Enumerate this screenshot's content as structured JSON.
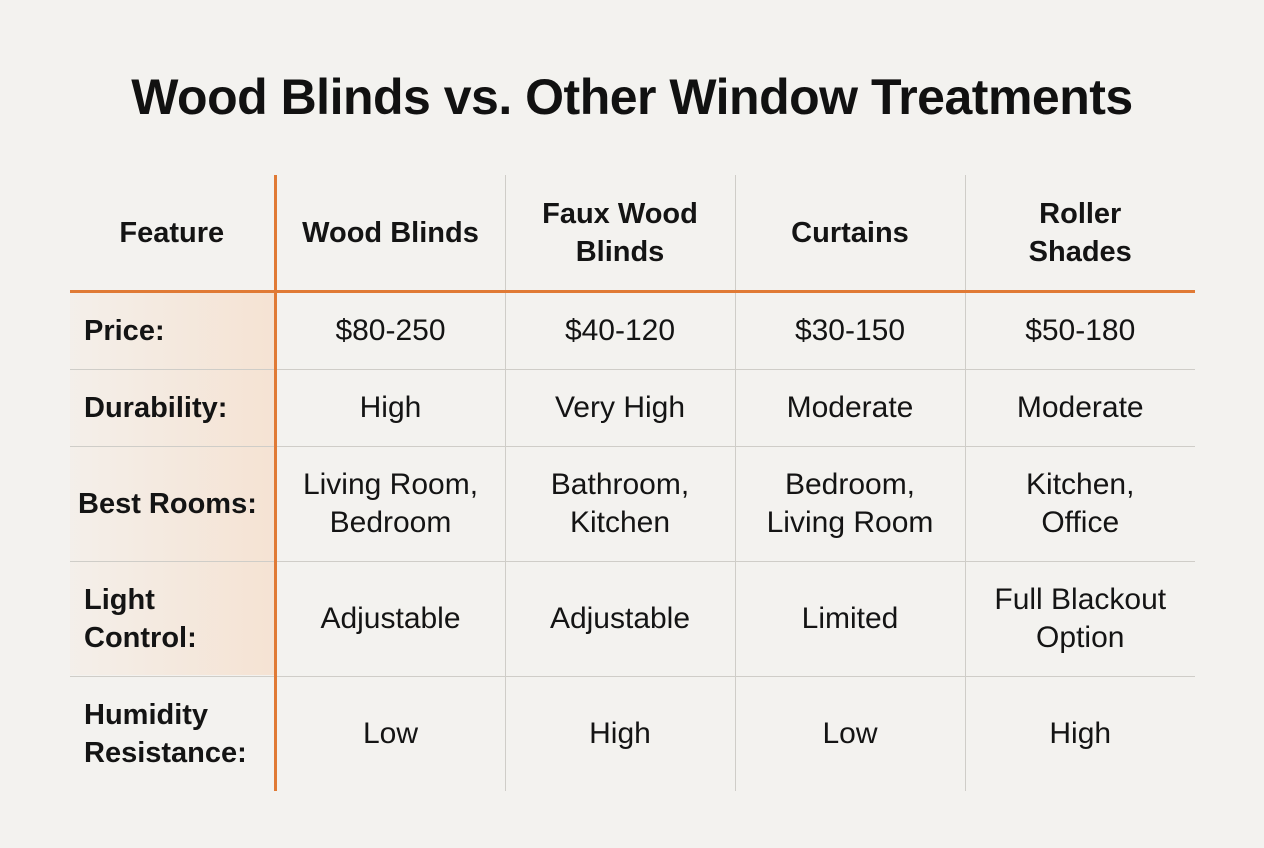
{
  "title": "Wood Blinds vs. Other Window Treatments",
  "colors": {
    "background": "#f3f2ef",
    "accent": "#e07a35",
    "grid": "#cfcdc8",
    "text": "#141414"
  },
  "table": {
    "headers": [
      "Feature",
      "Wood Blinds",
      "Faux Wood Blinds",
      "Curtains",
      "Roller Shades"
    ],
    "rows": [
      {
        "feature": "Price:",
        "values": [
          "$80-250",
          "$40-120",
          "$30-150",
          "$50-180"
        ]
      },
      {
        "feature": "Durability:",
        "values": [
          "High",
          "Very High",
          "Moderate",
          "Moderate"
        ]
      },
      {
        "feature": "Best Rooms:",
        "values": [
          "Living Room, Bedroom",
          "Bathroom, Kitchen",
          "Bedroom, Living Room",
          "Kitchen, Office"
        ]
      },
      {
        "feature": "Light Control:",
        "values": [
          "Adjustable",
          "Adjustable",
          "Limited",
          "Full Blackout Option"
        ]
      },
      {
        "feature": "Humidity Resistance:",
        "values": [
          "Low",
          "High",
          "Low",
          "High"
        ]
      }
    ]
  }
}
